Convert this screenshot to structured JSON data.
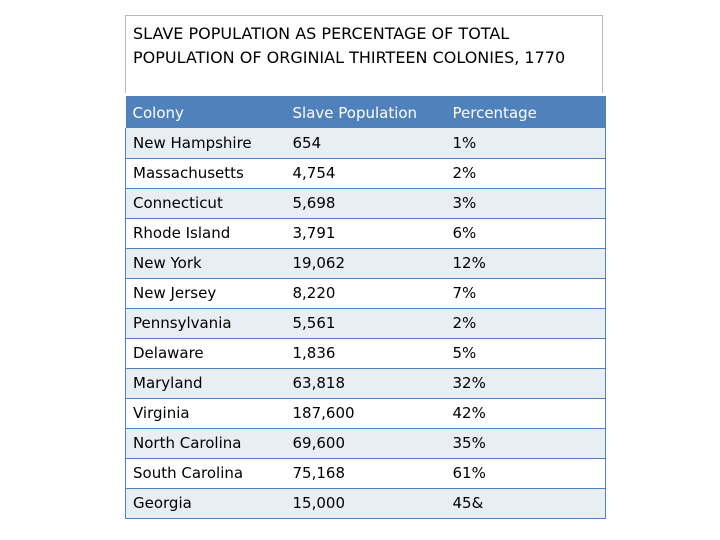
{
  "title": {
    "line1": "SLAVE POPULATION AS PERCENTAGE OF TOTAL",
    "line2": "POPULATION OF ORGINIAL THIRTEEN COLONIES, 1770"
  },
  "table": {
    "headers": [
      "Colony",
      "Slave Population",
      "Percentage"
    ],
    "rows": [
      [
        "New Hampshire",
        "654",
        "1%"
      ],
      [
        "Massachusetts",
        "4,754",
        "2%"
      ],
      [
        "Connecticut",
        "5,698",
        "3%"
      ],
      [
        "Rhode Island",
        "3,791",
        "6%"
      ],
      [
        "New York",
        "19,062",
        "12%"
      ],
      [
        "New Jersey",
        "8,220",
        "7%"
      ],
      [
        "Pennsylvania",
        "5,561",
        "2%"
      ],
      [
        "Delaware",
        "1,836",
        "5%"
      ],
      [
        "Maryland",
        "63,818",
        "32%"
      ],
      [
        "Virginia",
        "187,600",
        "42%"
      ],
      [
        "North Carolina",
        "69,600",
        "35%"
      ],
      [
        "South Carolina",
        "75,168",
        "61%"
      ],
      [
        "Georgia",
        "15,000",
        "45&"
      ]
    ]
  },
  "colors": {
    "header_bg": "#4f81bd",
    "header_text": "#ffffff",
    "row_shade": "#e9edf4",
    "row_border": "#4f81bd"
  }
}
